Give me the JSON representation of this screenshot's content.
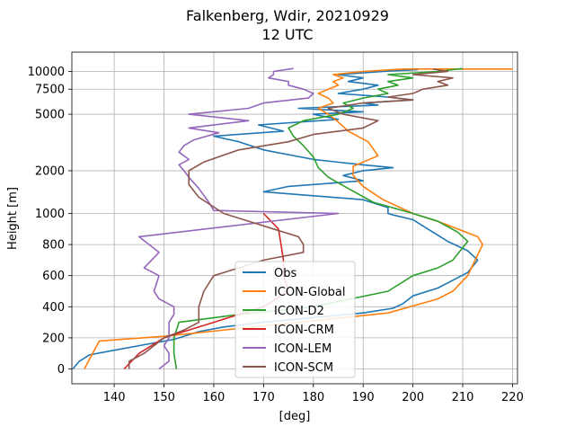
{
  "chart_data": {
    "type": "line",
    "title": "Falkenberg, Wdir, 20210929",
    "subtitle": "12 UTC",
    "xlabel": "[deg]",
    "ylabel": "Height [m]",
    "xlim": [
      131.5,
      221
    ],
    "xticks": [
      140,
      150,
      160,
      170,
      180,
      190,
      200,
      210,
      220
    ],
    "xtick_labels": [
      "140",
      "150",
      "160",
      "170",
      "180",
      "190",
      "200",
      "210",
      "220"
    ],
    "yticks": [
      0,
      200,
      400,
      600,
      800,
      1000,
      2000,
      5000,
      7500,
      10000
    ],
    "ytick_labels": [
      "0",
      "200",
      "400",
      "600",
      "800",
      "1000",
      "2000",
      "5000",
      "7500",
      "10000"
    ],
    "y_scale": "piecewise: linear 0-1000, log 1000-10000",
    "grid": true,
    "legend": "lower-center",
    "series": [
      {
        "name": "Obs",
        "color": "#1f77b4",
        "points": [
          [
            131.7,
            0
          ],
          [
            133,
            50
          ],
          [
            135,
            90
          ],
          [
            140,
            120
          ],
          [
            145,
            150
          ],
          [
            152,
            190
          ],
          [
            157,
            240
          ],
          [
            162,
            270
          ],
          [
            170,
            300
          ],
          [
            180,
            330
          ],
          [
            190,
            360
          ],
          [
            196,
            390
          ],
          [
            198,
            420
          ],
          [
            200,
            470
          ],
          [
            205,
            520
          ],
          [
            211,
            620
          ],
          [
            213,
            700
          ],
          [
            211,
            760
          ],
          [
            207,
            820
          ],
          [
            203,
            900
          ],
          [
            200,
            960
          ],
          [
            196,
            990
          ],
          [
            195,
            1000
          ],
          [
            195,
            1100
          ],
          [
            190,
            1250
          ],
          [
            178,
            1350
          ],
          [
            170,
            1420
          ],
          [
            175,
            1550
          ],
          [
            190,
            1700
          ],
          [
            186,
            1850
          ],
          [
            190,
            2000
          ],
          [
            196,
            2100
          ],
          [
            190,
            2200
          ],
          [
            180,
            2400
          ],
          [
            170,
            2800
          ],
          [
            165,
            3200
          ],
          [
            160,
            3500
          ],
          [
            174,
            3800
          ],
          [
            169,
            4200
          ],
          [
            185,
            4600
          ],
          [
            180,
            5000
          ],
          [
            190,
            5200
          ],
          [
            177,
            5500
          ],
          [
            193,
            5800
          ],
          [
            190,
            6000
          ],
          [
            200,
            6300
          ],
          [
            195,
            6600
          ],
          [
            185,
            7000
          ],
          [
            190,
            7500
          ],
          [
            193,
            8000
          ],
          [
            187,
            8500
          ],
          [
            190,
            9000
          ],
          [
            185,
            9500
          ],
          [
            194,
            10000
          ],
          [
            201,
            10300
          ]
        ]
      },
      {
        "name": "ICON-Global",
        "color": "#ff7f0e",
        "points": [
          [
            134,
            0
          ],
          [
            137,
            180
          ],
          [
            150,
            210
          ],
          [
            165,
            260
          ],
          [
            180,
            310
          ],
          [
            195,
            360
          ],
          [
            205,
            450
          ],
          [
            208,
            500
          ],
          [
            211,
            600
          ],
          [
            214,
            800
          ],
          [
            213,
            850
          ],
          [
            205,
            950
          ],
          [
            200,
            1000
          ],
          [
            194,
            1250
          ],
          [
            190,
            1550
          ],
          [
            188,
            1850
          ],
          [
            188,
            2150
          ],
          [
            193,
            2550
          ],
          [
            191,
            3200
          ],
          [
            187,
            3800
          ],
          [
            185,
            4400
          ],
          [
            183,
            5000
          ],
          [
            181,
            5500
          ],
          [
            184,
            6000
          ],
          [
            183,
            6500
          ],
          [
            181,
            7000
          ],
          [
            183,
            7500
          ],
          [
            185,
            8000
          ],
          [
            184,
            8500
          ],
          [
            186,
            9000
          ],
          [
            184,
            9500
          ],
          [
            190,
            10000
          ],
          [
            198,
            10400
          ],
          [
            220,
            10400
          ]
        ]
      },
      {
        "name": "ICON-D2",
        "color": "#2ca02c",
        "points": [
          [
            152.5,
            0
          ],
          [
            152,
            100
          ],
          [
            152,
            200
          ],
          [
            153,
            300
          ],
          [
            165,
            350
          ],
          [
            180,
            400
          ],
          [
            195,
            500
          ],
          [
            200,
            600
          ],
          [
            205,
            650
          ],
          [
            208,
            700
          ],
          [
            210,
            780
          ],
          [
            211,
            820
          ],
          [
            209,
            880
          ],
          [
            205,
            950
          ],
          [
            200,
            1000
          ],
          [
            192,
            1200
          ],
          [
            187,
            1500
          ],
          [
            183,
            1800
          ],
          [
            181,
            2100
          ],
          [
            180,
            2500
          ],
          [
            178,
            3000
          ],
          [
            176,
            3500
          ],
          [
            175,
            4000
          ],
          [
            178,
            4500
          ],
          [
            185,
            5000
          ],
          [
            188,
            5500
          ],
          [
            186,
            6000
          ],
          [
            190,
            6500
          ],
          [
            195,
            7000
          ],
          [
            193,
            7500
          ],
          [
            197,
            8000
          ],
          [
            195,
            8500
          ],
          [
            200,
            9000
          ],
          [
            195,
            9500
          ],
          [
            205,
            10000
          ],
          [
            210,
            10500
          ]
        ]
      },
      {
        "name": "ICON-CRM",
        "color": "#d62728",
        "points": [
          [
            142,
            0
          ],
          [
            145,
            100
          ],
          [
            150,
            200
          ],
          [
            160,
            300
          ],
          [
            170,
            400
          ],
          [
            175,
            500
          ],
          [
            174,
            600
          ],
          [
            174,
            700
          ],
          [
            173.5,
            800
          ],
          [
            173,
            900
          ],
          [
            170,
            1000
          ]
        ]
      },
      {
        "name": "ICON-LEM",
        "color": "#9467bd",
        "points": [
          [
            149,
            0
          ],
          [
            151,
            50
          ],
          [
            151,
            100
          ],
          [
            150,
            150
          ],
          [
            151,
            200
          ],
          [
            151,
            300
          ],
          [
            152,
            350
          ],
          [
            152,
            400
          ],
          [
            149,
            450
          ],
          [
            148,
            500
          ],
          [
            149,
            600
          ],
          [
            146,
            650
          ],
          [
            149,
            750
          ],
          [
            145,
            850
          ],
          [
            185,
            1000
          ],
          [
            160,
            1050
          ],
          [
            159,
            1200
          ],
          [
            157,
            1500
          ],
          [
            155,
            1800
          ],
          [
            154,
            2000
          ],
          [
            153,
            2200
          ],
          [
            155,
            2400
          ],
          [
            153,
            2700
          ],
          [
            154,
            3000
          ],
          [
            156,
            3300
          ],
          [
            161,
            3700
          ],
          [
            155,
            4000
          ],
          [
            167,
            4500
          ],
          [
            155,
            5000
          ],
          [
            167,
            5500
          ],
          [
            170,
            6000
          ],
          [
            179,
            6500
          ],
          [
            180,
            7000
          ],
          [
            178,
            7500
          ],
          [
            175,
            8000
          ],
          [
            175,
            8500
          ],
          [
            171,
            9000
          ],
          [
            172,
            9500
          ],
          [
            172,
            10000
          ],
          [
            176,
            10500
          ]
        ]
      },
      {
        "name": "ICON-SCM",
        "color": "#8c564b",
        "points": [
          [
            143,
            0
          ],
          [
            143,
            50
          ],
          [
            146,
            100
          ],
          [
            150,
            200
          ],
          [
            154,
            250
          ],
          [
            157,
            300
          ],
          [
            157,
            400
          ],
          [
            158,
            500
          ],
          [
            160,
            600
          ],
          [
            165,
            650
          ],
          [
            170,
            700
          ],
          [
            178,
            750
          ],
          [
            178,
            800
          ],
          [
            177,
            850
          ],
          [
            172,
            900
          ],
          [
            162,
            1000
          ],
          [
            157,
            1300
          ],
          [
            155,
            1600
          ],
          [
            155,
            2000
          ],
          [
            158,
            2300
          ],
          [
            165,
            2800
          ],
          [
            175,
            3200
          ],
          [
            180,
            3600
          ],
          [
            190,
            4000
          ],
          [
            193,
            4500
          ],
          [
            186,
            5000
          ],
          [
            183,
            5500
          ],
          [
            190,
            6000
          ],
          [
            200,
            6300
          ],
          [
            195,
            6600
          ],
          [
            200,
            7000
          ],
          [
            202,
            7500
          ],
          [
            207,
            8000
          ],
          [
            205,
            8500
          ],
          [
            208,
            9000
          ],
          [
            200,
            9500
          ],
          [
            207,
            10000
          ],
          [
            204,
            10400
          ]
        ]
      }
    ]
  }
}
